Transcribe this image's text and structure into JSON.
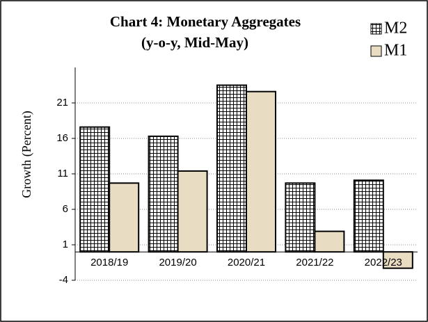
{
  "chart_data": {
    "type": "bar",
    "title": [
      "Chart  4:  Monetary Aggregates",
      "(y-o-y,  Mid-May)"
    ],
    "y_label": "Growth (Percent)",
    "categories": [
      "2018/19",
      "2019/20",
      "2020/21",
      "2021/22",
      "2022/23"
    ],
    "series": [
      {
        "name": "M2",
        "color": "#ffffff",
        "values": [
          17.6,
          16.3,
          23.5,
          9.7,
          10.1
        ]
      },
      {
        "name": "M1",
        "color": "#e8dcc2",
        "values": [
          9.7,
          11.4,
          22.6,
          2.9,
          -2.3
        ]
      }
    ],
    "ylim": [
      -4,
      26
    ],
    "yticks": [
      -4,
      1,
      6,
      11,
      16,
      21
    ],
    "grid": true,
    "legend": "top-right"
  }
}
